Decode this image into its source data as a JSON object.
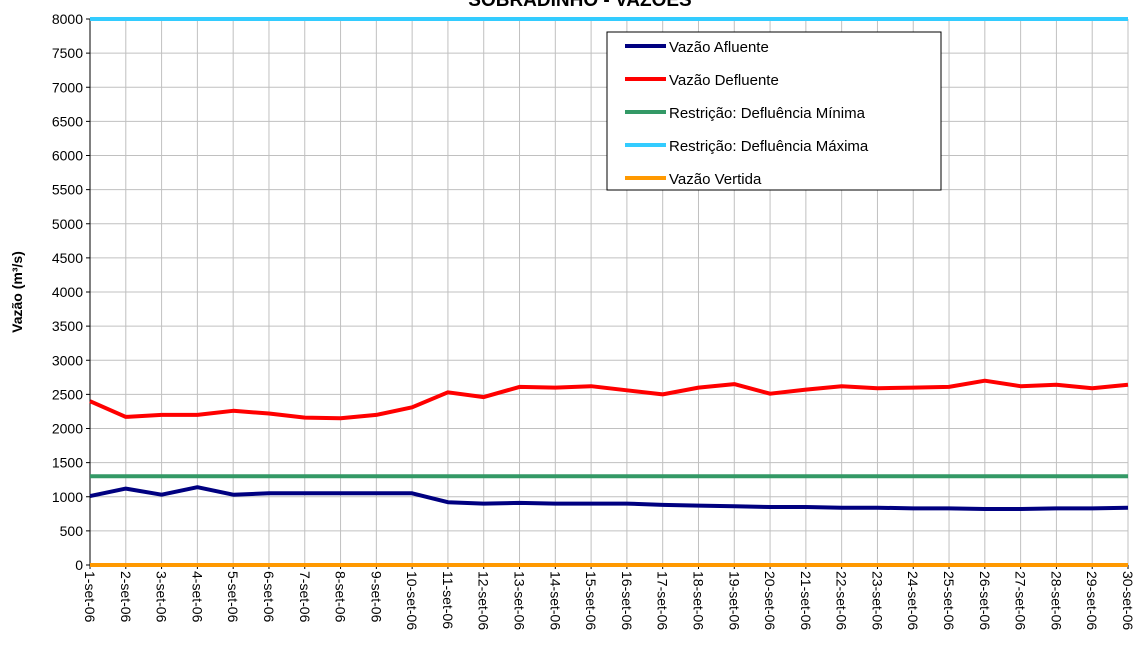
{
  "chart_data": {
    "type": "line",
    "title": "SOBRADINHO - VAZÕES",
    "xlabel": "",
    "ylabel": "Vazão (m³/s)",
    "ylim": [
      0,
      8000
    ],
    "yticks": [
      0,
      500,
      1000,
      1500,
      2000,
      2500,
      3000,
      3500,
      4000,
      4500,
      5000,
      5500,
      6000,
      6500,
      7000,
      7500,
      8000
    ],
    "grid": true,
    "legend_position": "top-right",
    "x": [
      "1-set-06",
      "2-set-06",
      "3-set-06",
      "4-set-06",
      "5-set-06",
      "6-set-06",
      "7-set-06",
      "8-set-06",
      "9-set-06",
      "10-set-06",
      "11-set-06",
      "12-set-06",
      "13-set-06",
      "14-set-06",
      "15-set-06",
      "16-set-06",
      "17-set-06",
      "18-set-06",
      "19-set-06",
      "20-set-06",
      "21-set-06",
      "22-set-06",
      "23-set-06",
      "24-set-06",
      "25-set-06",
      "26-set-06",
      "27-set-06",
      "28-set-06",
      "29-set-06",
      "30-set-06"
    ],
    "series": [
      {
        "name": "Vazão Afluente",
        "color": "#000080",
        "values": [
          1010,
          1120,
          1030,
          1140,
          1030,
          1050,
          1050,
          1050,
          1050,
          1050,
          920,
          900,
          910,
          900,
          900,
          900,
          880,
          870,
          860,
          850,
          850,
          840,
          840,
          830,
          830,
          820,
          820,
          830,
          830,
          840
        ]
      },
      {
        "name": "Vazão Defluente",
        "color": "#ff0000",
        "values": [
          2400,
          2170,
          2200,
          2200,
          2260,
          2220,
          2160,
          2150,
          2200,
          2310,
          2530,
          2460,
          2610,
          2600,
          2620,
          2560,
          2500,
          2600,
          2650,
          2510,
          2570,
          2620,
          2590,
          2600,
          2610,
          2700,
          2620,
          2640,
          2590,
          2640
        ]
      },
      {
        "name": "Restrição: Defluência Mínima",
        "color": "#339966",
        "values": [
          1300,
          1300,
          1300,
          1300,
          1300,
          1300,
          1300,
          1300,
          1300,
          1300,
          1300,
          1300,
          1300,
          1300,
          1300,
          1300,
          1300,
          1300,
          1300,
          1300,
          1300,
          1300,
          1300,
          1300,
          1300,
          1300,
          1300,
          1300,
          1300,
          1300
        ]
      },
      {
        "name": "Restrição: Defluência Máxima",
        "color": "#33ccff",
        "values": [
          8000,
          8000,
          8000,
          8000,
          8000,
          8000,
          8000,
          8000,
          8000,
          8000,
          8000,
          8000,
          8000,
          8000,
          8000,
          8000,
          8000,
          8000,
          8000,
          8000,
          8000,
          8000,
          8000,
          8000,
          8000,
          8000,
          8000,
          8000,
          8000,
          8000
        ]
      },
      {
        "name": "Vazão Vertida",
        "color": "#ff9900",
        "values": [
          0,
          0,
          0,
          0,
          0,
          0,
          0,
          0,
          0,
          0,
          0,
          0,
          0,
          0,
          0,
          0,
          0,
          0,
          0,
          0,
          0,
          0,
          0,
          0,
          0,
          0,
          0,
          0,
          0,
          0
        ]
      }
    ]
  }
}
